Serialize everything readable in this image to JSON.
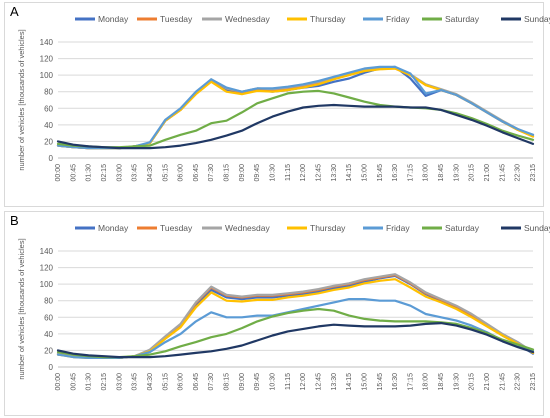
{
  "panels": [
    {
      "letter": "A"
    },
    {
      "letter": "B"
    }
  ],
  "chart_data": [
    {
      "type": "line",
      "panel": "A",
      "title": "",
      "xlabel": "",
      "ylabel": "number of vehicles [thousands of vehicles]",
      "ylim": [
        0,
        140
      ],
      "yticks": [
        0,
        20,
        40,
        60,
        80,
        100,
        120,
        140
      ],
      "grid": true,
      "legend": "top",
      "x_ticks": [
        "00:00",
        "00:45",
        "01:30",
        "02:15",
        "03:00",
        "03:45",
        "04:30",
        "05:15",
        "06:00",
        "06:45",
        "07:30",
        "08:15",
        "09:00",
        "09:45",
        "10:30",
        "11:15",
        "12:00",
        "12:45",
        "13:30",
        "14:15",
        "15:00",
        "15:45",
        "16:30",
        "17:15",
        "18:00",
        "18:45",
        "19:30",
        "20:15",
        "21:00",
        "21:45",
        "22:30",
        "23:15"
      ],
      "series": [
        {
          "name": "Monday",
          "color": "#4472c4",
          "values": [
            15,
            13,
            12,
            12,
            12,
            14,
            18,
            45,
            58,
            78,
            93,
            82,
            78,
            82,
            80,
            82,
            85,
            87,
            92,
            96,
            103,
            108,
            110,
            96,
            75,
            82,
            76,
            66,
            55,
            44,
            34,
            28
          ]
        },
        {
          "name": "Tuesday",
          "color": "#ed7d31",
          "values": [
            15,
            13,
            12,
            12,
            12,
            14,
            18,
            45,
            58,
            78,
            94,
            84,
            79,
            83,
            82,
            84,
            86,
            90,
            96,
            100,
            106,
            108,
            108,
            100,
            88,
            82,
            76,
            66,
            55,
            44,
            34,
            26
          ]
        },
        {
          "name": "Wednesday",
          "color": "#a5a5a5",
          "values": [
            15,
            13,
            12,
            12,
            12,
            14,
            18,
            46,
            59,
            79,
            95,
            84,
            80,
            84,
            83,
            85,
            88,
            92,
            97,
            102,
            107,
            109,
            109,
            101,
            89,
            83,
            77,
            67,
            56,
            45,
            35,
            27
          ]
        },
        {
          "name": "Thursday",
          "color": "#ffc000",
          "values": [
            15,
            13,
            12,
            12,
            12,
            14,
            18,
            45,
            58,
            77,
            92,
            80,
            77,
            81,
            80,
            82,
            85,
            89,
            95,
            100,
            105,
            107,
            108,
            100,
            88,
            82,
            76,
            66,
            55,
            44,
            34,
            26
          ]
        },
        {
          "name": "Friday",
          "color": "#5b9bd5",
          "values": [
            15,
            13,
            12,
            12,
            12,
            14,
            19,
            46,
            60,
            80,
            95,
            85,
            80,
            84,
            84,
            86,
            89,
            93,
            98,
            103,
            108,
            110,
            110,
            102,
            78,
            82,
            76,
            66,
            55,
            44,
            35,
            28
          ]
        },
        {
          "name": "Saturday",
          "color": "#70ad47",
          "values": [
            17,
            15,
            14,
            13,
            13,
            14,
            15,
            22,
            28,
            33,
            42,
            45,
            55,
            66,
            72,
            78,
            80,
            81,
            78,
            73,
            68,
            64,
            62,
            61,
            60,
            58,
            54,
            48,
            41,
            33,
            27,
            22
          ]
        },
        {
          "name": "Sunday",
          "color": "#203864",
          "values": [
            20,
            16,
            14,
            13,
            12,
            12,
            12,
            13,
            15,
            18,
            22,
            27,
            33,
            42,
            50,
            56,
            61,
            63,
            64,
            63,
            62,
            62,
            62,
            61,
            61,
            58,
            52,
            46,
            39,
            31,
            24,
            17
          ]
        }
      ]
    },
    {
      "type": "line",
      "panel": "B",
      "title": "",
      "xlabel": "",
      "ylabel": "number of vehicles [thousands of vehicles]",
      "ylim": [
        0,
        140
      ],
      "yticks": [
        0,
        20,
        40,
        60,
        80,
        100,
        120,
        140
      ],
      "grid": true,
      "legend": "top",
      "x_ticks": [
        "00:00",
        "00:45",
        "01:30",
        "02:15",
        "03:00",
        "03:45",
        "04:30",
        "05:15",
        "06:00",
        "06:45",
        "07:30",
        "08:15",
        "09:00",
        "09:45",
        "10:30",
        "11:15",
        "12:00",
        "12:45",
        "13:30",
        "14:15",
        "15:00",
        "15:45",
        "16:30",
        "17:15",
        "18:00",
        "18:45",
        "19:30",
        "20:15",
        "21:00",
        "21:45",
        "22:30",
        "23:15"
      ],
      "series": [
        {
          "name": "Monday",
          "color": "#4472c4",
          "values": [
            15,
            13,
            11,
            11,
            11,
            13,
            20,
            35,
            50,
            75,
            93,
            84,
            82,
            84,
            84,
            86,
            88,
            91,
            95,
            98,
            103,
            107,
            110,
            100,
            88,
            80,
            72,
            62,
            50,
            38,
            28,
            16
          ]
        },
        {
          "name": "Tuesday",
          "color": "#ed7d31",
          "values": [
            16,
            13,
            11,
            11,
            11,
            13,
            20,
            36,
            51,
            77,
            96,
            86,
            84,
            86,
            86,
            88,
            90,
            93,
            97,
            100,
            105,
            108,
            111,
            101,
            89,
            81,
            73,
            63,
            51,
            39,
            29,
            17
          ]
        },
        {
          "name": "Wednesday",
          "color": "#a5a5a5",
          "values": [
            16,
            13,
            11,
            11,
            11,
            13,
            21,
            37,
            52,
            78,
            97,
            87,
            85,
            87,
            87,
            89,
            91,
            94,
            98,
            101,
            106,
            109,
            112,
            102,
            90,
            82,
            74,
            64,
            52,
            40,
            30,
            18
          ]
        },
        {
          "name": "Thursday",
          "color": "#ffc000",
          "values": [
            15,
            12,
            11,
            11,
            11,
            13,
            19,
            34,
            48,
            72,
            90,
            80,
            79,
            81,
            81,
            84,
            86,
            89,
            93,
            96,
            101,
            104,
            106,
            96,
            85,
            78,
            70,
            60,
            49,
            38,
            28,
            17
          ]
        },
        {
          "name": "Friday",
          "color": "#5b9bd5",
          "values": [
            15,
            12,
            11,
            11,
            11,
            13,
            18,
            30,
            40,
            55,
            66,
            60,
            60,
            62,
            62,
            66,
            70,
            74,
            78,
            82,
            82,
            80,
            80,
            74,
            64,
            60,
            56,
            50,
            42,
            32,
            26,
            20
          ]
        },
        {
          "name": "Saturday",
          "color": "#70ad47",
          "values": [
            18,
            15,
            13,
            12,
            12,
            13,
            15,
            19,
            25,
            30,
            36,
            40,
            47,
            55,
            61,
            65,
            68,
            70,
            68,
            62,
            58,
            56,
            55,
            55,
            55,
            54,
            52,
            47,
            41,
            33,
            27,
            21
          ]
        },
        {
          "name": "Sunday",
          "color": "#203864",
          "values": [
            20,
            16,
            14,
            13,
            12,
            12,
            12,
            13,
            15,
            17,
            19,
            22,
            26,
            32,
            38,
            43,
            46,
            49,
            51,
            50,
            49,
            49,
            49,
            50,
            52,
            53,
            50,
            45,
            39,
            31,
            24,
            18
          ]
        }
      ]
    }
  ]
}
